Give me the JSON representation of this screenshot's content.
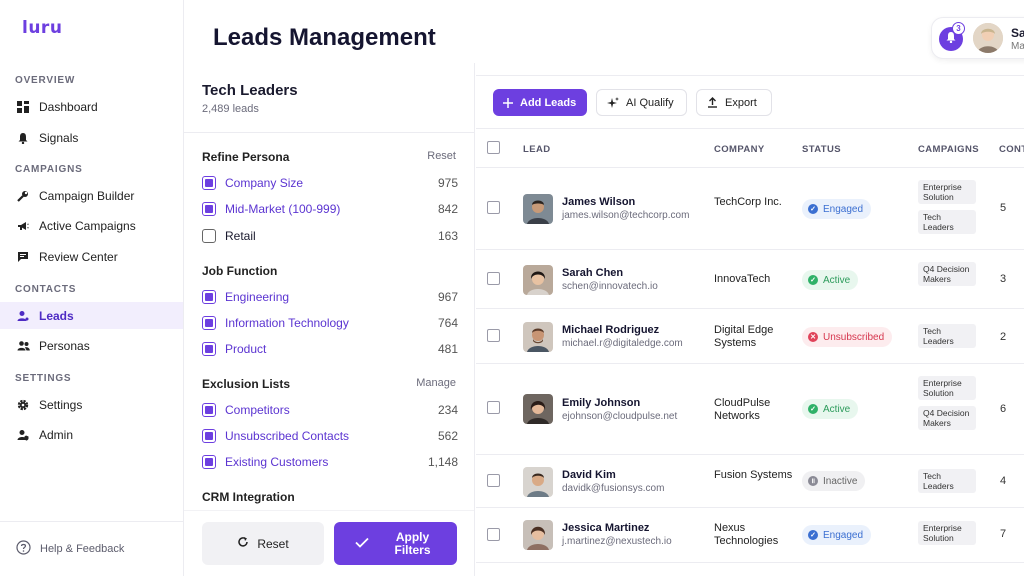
{
  "app": {
    "logo": "luru"
  },
  "sidebar": {
    "sections": {
      "overview": "OVERVIEW",
      "campaigns": "CAMPAIGNS",
      "contacts": "CONTACTS",
      "settings": "SETTINGS"
    },
    "items": [
      {
        "label": "Dashboard",
        "icon": "dashboard-icon"
      },
      {
        "label": "Signals",
        "icon": "bell-icon"
      },
      {
        "label": "Campaign Builder",
        "icon": "wrench-icon"
      },
      {
        "label": "Active Campaigns",
        "icon": "megaphone-icon"
      },
      {
        "label": "Review Center",
        "icon": "chat-icon"
      },
      {
        "label": "Leads",
        "icon": "leads-icon"
      },
      {
        "label": "Personas",
        "icon": "users-icon"
      },
      {
        "label": "Settings",
        "icon": "gear-icon"
      },
      {
        "label": "Admin",
        "icon": "admin-icon"
      }
    ],
    "help": "Help & Feedback"
  },
  "header": {
    "title": "Leads Management",
    "notifications": "3",
    "user_name": "Sa",
    "user_role": "Ma"
  },
  "filters": {
    "title": "Tech Leaders",
    "count": "2,489 leads",
    "groups": {
      "persona": {
        "title": "Refine Persona",
        "action": "Reset",
        "options": [
          {
            "label": "Company Size",
            "count": "975",
            "checked": true
          },
          {
            "label": "Mid-Market (100-999)",
            "count": "842",
            "checked": true
          },
          {
            "label": "Retail",
            "count": "163",
            "checked": false
          }
        ]
      },
      "job": {
        "title": "Job Function",
        "options": [
          {
            "label": "Engineering",
            "count": "967",
            "checked": true
          },
          {
            "label": "Information Technology",
            "count": "764",
            "checked": true
          },
          {
            "label": "Product",
            "count": "481",
            "checked": true
          }
        ]
      },
      "exclusion": {
        "title": "Exclusion Lists",
        "action": "Manage",
        "options": [
          {
            "label": "Competitors",
            "count": "234",
            "checked": true
          },
          {
            "label": "Unsubscribed Contacts",
            "count": "562",
            "checked": true
          },
          {
            "label": "Existing Customers",
            "count": "1,148",
            "checked": true
          }
        ]
      },
      "crm": {
        "title": "CRM Integration"
      }
    },
    "reset_label": "Reset",
    "apply_label": "Apply Filters"
  },
  "toolbar": {
    "add_label": "Add Leads",
    "ai_label": "AI Qualify",
    "export_label": "Export"
  },
  "table": {
    "columns": {
      "lead": "LEAD",
      "company": "COMPANY",
      "status": "STATUS",
      "campaigns": "CAMPAIGNS",
      "contacts": "CONT"
    },
    "rows": [
      {
        "name": "James Wilson",
        "email": "james.wilson@techcorp.com",
        "company": "TechCorp Inc.",
        "status": "Engaged",
        "campaigns": [
          "Enterprise Solution",
          "Tech Leaders"
        ],
        "contacts": "5"
      },
      {
        "name": "Sarah Chen",
        "email": "schen@innovatech.io",
        "company": "InnovaTech",
        "status": "Active",
        "campaigns": [
          "Q4 Decision Makers"
        ],
        "contacts": "3"
      },
      {
        "name": "Michael Rodriguez",
        "email": "michael.r@digitaledge.com",
        "company": "Digital Edge Systems",
        "status": "Unsubscribed",
        "campaigns": [
          "Tech Leaders"
        ],
        "contacts": "2"
      },
      {
        "name": "Emily Johnson",
        "email": "ejohnson@cloudpulse.net",
        "company": "CloudPulse Networks",
        "status": "Active",
        "campaigns": [
          "Enterprise Solution",
          "Q4 Decision Makers"
        ],
        "contacts": "6"
      },
      {
        "name": "David Kim",
        "email": "davidk@fusionsys.com",
        "company": "Fusion Systems",
        "status": "Inactive",
        "campaigns": [
          "Tech Leaders"
        ],
        "contacts": "4"
      },
      {
        "name": "Jessica Martinez",
        "email": "j.martinez@nexustech.io",
        "company": "Nexus Technologies",
        "status": "Engaged",
        "campaigns": [
          "Enterprise Solution"
        ],
        "contacts": "7"
      }
    ]
  },
  "colors": {
    "accent": "#6d3fe0",
    "engaged": "#3b6fd1",
    "active": "#2fb168",
    "unsubscribed": "#e0435a",
    "inactive": "#8a8a95"
  }
}
